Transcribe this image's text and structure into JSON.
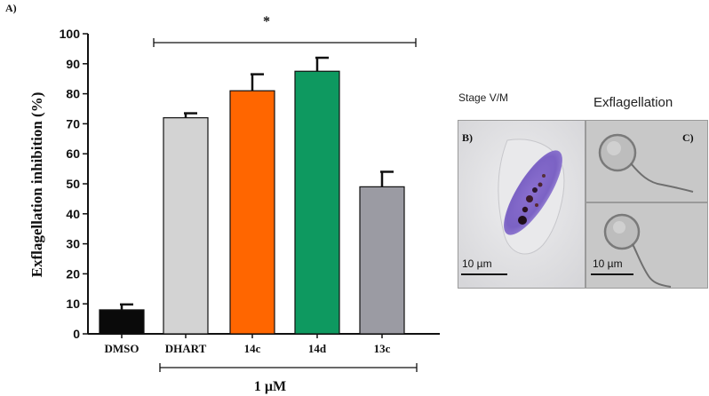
{
  "panel_label_a": "A)",
  "panel_label_b": "B)",
  "panel_label_c": "C)",
  "micrograph": {
    "stage_label": "Stage V/M",
    "exflagellation_label": "Exflagellation",
    "scale_bar_b": "10 µm",
    "scale_bar_c": "10 µm"
  },
  "chart_data": {
    "type": "bar",
    "title": "",
    "ylabel": "Exflagellation inhibition (%)",
    "xlabel": "",
    "ylim": [
      0,
      100
    ],
    "yticks": [
      0,
      10,
      20,
      30,
      40,
      50,
      60,
      70,
      80,
      90,
      100
    ],
    "categories": [
      "DMSO",
      "DHART",
      "14c",
      "14d",
      "13c"
    ],
    "values": [
      8,
      72,
      81,
      87.5,
      49
    ],
    "errors": [
      1.8,
      1.5,
      5.5,
      4.5,
      5.0
    ],
    "colors": [
      "#0a0a0a",
      "#d3d3d3",
      "#ff6600",
      "#0e9960",
      "#9b9ba3"
    ],
    "significance_mark": "*",
    "group_label": "1 µM"
  }
}
